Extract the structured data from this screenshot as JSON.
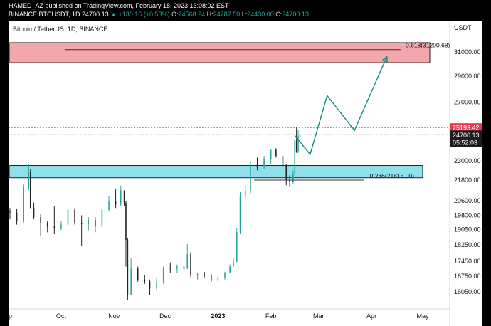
{
  "header": {
    "author": "HAMED_AZ",
    "published_text": "published on TradingView.com, February 18, 2023 13:08:02 EST",
    "symbol": "BINANCE:BTCUSDT, 1D",
    "last": "24700.13",
    "change": "▲ +130.16 (+0.53%)",
    "o_label": "O:",
    "o": "24568.24",
    "h_label": "H:",
    "h": "24787.50",
    "l_label": "L:",
    "l": "24430.00",
    "c_label": "C:",
    "c": "24700.13"
  },
  "chart_data": {
    "type": "candlestick",
    "title": "Bitcoin / TetherUS, 1D, BINANCE",
    "currency": "USDT",
    "y_scale": "log",
    "y_ticks": [
      31000,
      29000,
      27000,
      23000,
      21800,
      20600,
      19800,
      19050,
      18250,
      17450,
      16750,
      16050
    ],
    "x_ticks": [
      "p",
      "Oct",
      "Nov",
      "Dec",
      "2023",
      "Feb",
      "Mar",
      "Apr",
      "May"
    ],
    "price_labels": {
      "high_price": "25193.42",
      "last_price": "24700.13",
      "countdown": "05:52:03"
    },
    "zones": [
      {
        "name": "resistance",
        "color": "#f4a6ad",
        "from": 30100,
        "to": 31800
      },
      {
        "name": "support",
        "color": "#8fe0ea",
        "from": 21950,
        "to": 22700
      }
    ],
    "fib_levels": [
      {
        "label": "0.618(31200.68)",
        "value": 31200.68
      },
      {
        "label": "0.236(21813.00)",
        "value": 21813.0
      }
    ],
    "projection_path": [
      [
        "2023-02-15",
        24650
      ],
      [
        "2023-02-24",
        23400
      ],
      [
        "2023-03-06",
        27500
      ],
      [
        "2023-03-22",
        25000
      ],
      [
        "2023-04-10",
        30600
      ]
    ],
    "candles_ohlc": [
      [
        "2022-09-01",
        20050,
        20200,
        19600,
        19950
      ],
      [
        "2022-09-05",
        19950,
        20150,
        19300,
        19500
      ],
      [
        "2022-09-09",
        19500,
        21600,
        19400,
        21400
      ],
      [
        "2022-09-12",
        21400,
        22800,
        21200,
        22300
      ],
      [
        "2022-09-13",
        22300,
        22500,
        20300,
        20200
      ],
      [
        "2022-09-15",
        20200,
        20500,
        19600,
        19700
      ],
      [
        "2022-09-19",
        19700,
        19900,
        18700,
        19400
      ],
      [
        "2022-09-23",
        19400,
        19500,
        18900,
        19200
      ],
      [
        "2022-09-27",
        19200,
        20300,
        18800,
        19100
      ],
      [
        "2022-10-01",
        19100,
        19500,
        19000,
        19300
      ],
      [
        "2022-10-05",
        19300,
        20400,
        19200,
        20100
      ],
      [
        "2022-10-09",
        20100,
        20200,
        19300,
        19400
      ],
      [
        "2022-10-13",
        19400,
        19800,
        18200,
        19350
      ],
      [
        "2022-10-17",
        19350,
        19700,
        19000,
        19550
      ],
      [
        "2022-10-21",
        19550,
        19700,
        18900,
        19200
      ],
      [
        "2022-10-25",
        19200,
        20300,
        19100,
        20100
      ],
      [
        "2022-10-29",
        20100,
        20900,
        20050,
        20600
      ],
      [
        "2022-11-02",
        20600,
        21300,
        20200,
        20400
      ],
      [
        "2022-11-05",
        20400,
        21450,
        20300,
        21200
      ],
      [
        "2022-11-07",
        21200,
        21100,
        20300,
        20500
      ],
      [
        "2022-11-08",
        20500,
        20600,
        17200,
        18500
      ],
      [
        "2022-11-09",
        18500,
        18600,
        15700,
        15900
      ],
      [
        "2022-11-11",
        15900,
        17600,
        16300,
        17100
      ],
      [
        "2022-11-15",
        17100,
        17200,
        16500,
        16600
      ],
      [
        "2022-11-19",
        16600,
        16800,
        16400,
        16500
      ],
      [
        "2022-11-22",
        16500,
        16600,
        15900,
        16200
      ],
      [
        "2022-11-26",
        16200,
        16650,
        16100,
        16500
      ],
      [
        "2022-11-30",
        16500,
        17200,
        16400,
        17150
      ],
      [
        "2022-12-04",
        17150,
        17400,
        16900,
        17100
      ],
      [
        "2022-12-08",
        17100,
        17300,
        16900,
        17200
      ],
      [
        "2022-12-12",
        17200,
        17300,
        16850,
        17100
      ],
      [
        "2022-12-14",
        17100,
        18300,
        17800,
        17800
      ],
      [
        "2022-12-16",
        17800,
        17900,
        16700,
        16800
      ],
      [
        "2022-12-20",
        16800,
        16900,
        16600,
        16850
      ],
      [
        "2022-12-24",
        16850,
        16950,
        16700,
        16800
      ],
      [
        "2022-12-28",
        16800,
        16850,
        16500,
        16550
      ],
      [
        "2023-01-01",
        16550,
        16800,
        16500,
        16700
      ],
      [
        "2023-01-05",
        16700,
        16950,
        16600,
        16900
      ],
      [
        "2023-01-08",
        16900,
        17300,
        16900,
        17200
      ],
      [
        "2023-01-10",
        17200,
        17600,
        17200,
        17450
      ],
      [
        "2023-01-12",
        17450,
        19100,
        17400,
        18900
      ],
      [
        "2023-01-14",
        18900,
        21100,
        18800,
        20900
      ],
      [
        "2023-01-17",
        20900,
        21500,
        20700,
        21200
      ],
      [
        "2023-01-20",
        21200,
        23000,
        21000,
        22800
      ],
      [
        "2023-01-24",
        22800,
        23200,
        22400,
        22600
      ],
      [
        "2023-01-28",
        22600,
        23300,
        22500,
        23100
      ],
      [
        "2023-02-01",
        23100,
        23700,
        22800,
        23700
      ],
      [
        "2023-02-04",
        23700,
        23800,
        23200,
        23300
      ],
      [
        "2023-02-08",
        23300,
        23400,
        22500,
        22700
      ],
      [
        "2023-02-10",
        22700,
        22800,
        21500,
        21800
      ],
      [
        "2023-02-12",
        21800,
        22100,
        21400,
        21700
      ],
      [
        "2023-02-14",
        21700,
        22400,
        21600,
        22200
      ],
      [
        "2023-02-15",
        22200,
        24400,
        22100,
        24300
      ],
      [
        "2023-02-16",
        24300,
        25193,
        23500,
        23600
      ],
      [
        "2023-02-17",
        23600,
        25000,
        23500,
        24600
      ],
      [
        "2023-02-18",
        24568.24,
        24787.5,
        24430,
        24700.13
      ]
    ],
    "colors": {
      "up": "#26a69a",
      "down": "#222222",
      "projection": "#138a88",
      "last_price": "#1c1c1c",
      "high_label": "#e8394c"
    },
    "grid": false
  }
}
